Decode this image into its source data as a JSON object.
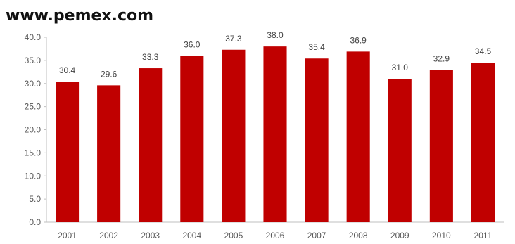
{
  "header": {
    "top_line": "",
    "source": "www.pemex.com"
  },
  "chart_data": {
    "type": "bar",
    "title": "",
    "xlabel": "",
    "ylabel": "",
    "categories": [
      "2001",
      "2002",
      "2003",
      "2004",
      "2005",
      "2006",
      "2007",
      "2008",
      "2009",
      "2010",
      "2011"
    ],
    "values": [
      30.4,
      29.6,
      33.3,
      36.0,
      37.3,
      38.0,
      35.4,
      36.9,
      31.0,
      32.9,
      34.5
    ],
    "data_labels": [
      "30.4",
      "29.6",
      "33.3",
      "36.0",
      "37.3",
      "38.0",
      "35.4",
      "36.9",
      "31.0",
      "32.9",
      "34.5"
    ],
    "ylim": [
      0,
      40
    ],
    "y_ticks": [
      "0.0",
      "5.0",
      "10.0",
      "15.0",
      "20.0",
      "25.0",
      "30.0",
      "35.0",
      "40.0"
    ],
    "grid": false,
    "bar_color": "#c00000",
    "axis_color": "#bfbfbf"
  }
}
